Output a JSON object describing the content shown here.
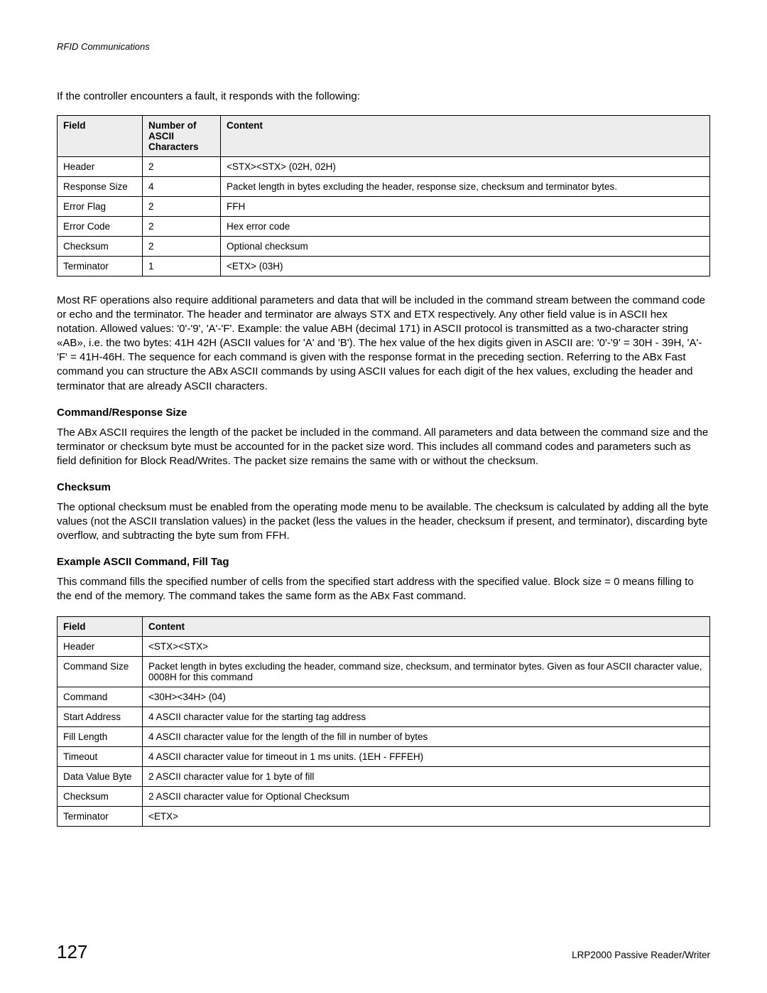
{
  "running_head": "RFID Communications",
  "intro": "If the controller encounters a fault, it responds with the following:",
  "table1": {
    "headers": [
      "Field",
      "Number of ASCII Characters",
      "Content"
    ],
    "rows": [
      [
        "Header",
        "2",
        "<STX><STX> (02H, 02H)"
      ],
      [
        "Response Size",
        "4",
        "Packet length in bytes excluding the header, response size, checksum and terminator bytes."
      ],
      [
        "Error Flag",
        "2",
        "FFH"
      ],
      [
        "Error Code",
        "2",
        "Hex error code"
      ],
      [
        "Checksum",
        "2",
        "Optional checksum"
      ],
      [
        "Terminator",
        "1",
        "<ETX> (03H)"
      ]
    ]
  },
  "para1": "Most RF operations also require additional parameters and data that will be included in the command stream between the command code or echo and the terminator. The header and terminator are always STX and ETX respectively. Any other field value is in ASCII hex notation. Allowed values: '0'-'9', 'A'-'F'. Example: the value ABH (decimal 171) in ASCII protocol is transmitted as a two-character string «AB», i.e. the two bytes: 41H 42H (ASCII values for 'A' and 'B'). The hex value of the hex digits given in ASCII are: '0'-'9' = 30H - 39H, 'A'-'F' = 41H-46H. The sequence for each command is given with the response format in the preceding section. Referring to the ABx Fast command you can structure the ABx ASCII commands by using ASCII values for each digit of the hex values, excluding the header and terminator that are already ASCII characters.",
  "sub1": "Command/Response Size",
  "para2": "The ABx ASCII requires the length of the packet be included in the command.  All parameters and data between the command size and the terminator or checksum byte must be accounted for in the packet size word. This includes all command codes and parameters such as field definition for Block Read/Writes. The packet size remains the same with or without the checksum.",
  "sub2": "Checksum",
  "para3": "The optional checksum must be enabled from the operating mode menu to be available. The checksum is calculated by adding all the byte values (not the ASCII translation values) in the packet (less the values in the header, checksum if present, and terminator), discarding byte overflow, and subtracting the byte sum from FFH.",
  "sub3": "Example ASCII Command, Fill Tag",
  "para4": "This command fills the specified number of cells from the specified start address with the specified value. Block size = 0 means filling to the end of the memory. The command takes the same form as the ABx Fast command.",
  "table2": {
    "headers": [
      "Field",
      "Content"
    ],
    "rows": [
      [
        "Header",
        "<STX><STX>"
      ],
      [
        "Command Size",
        "Packet length in bytes excluding the header, command size, checksum, and terminator bytes. Given as four ASCII character value, 0008H for this command"
      ],
      [
        "Command",
        "<30H><34H> (04)"
      ],
      [
        "Start Address",
        "4 ASCII character value for the starting tag address"
      ],
      [
        "Fill Length",
        "4 ASCII character value for the length of the fill in number of bytes"
      ],
      [
        "Timeout",
        "4 ASCII character value for timeout in 1 ms units. (1EH - FFFEH)"
      ],
      [
        "Data Value Byte",
        "2 ASCII character value for 1 byte of fill"
      ],
      [
        "Checksum",
        "2 ASCII character value for Optional Checksum"
      ],
      [
        "Terminator",
        "<ETX>"
      ]
    ]
  },
  "page_number": "127",
  "footer_right": "LRP2000 Passive Reader/Writer"
}
